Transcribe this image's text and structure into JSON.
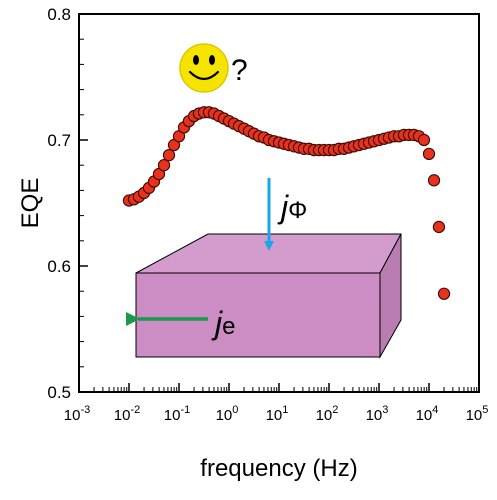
{
  "chart_data": {
    "type": "scatter",
    "title": "",
    "xlabel": "frequency (Hz)",
    "ylabel": "EQE",
    "x_scale": "log",
    "xlim": [
      0.001,
      100000
    ],
    "ylim": [
      0.5,
      0.8
    ],
    "x_tick_labels": [
      {
        "base": "10",
        "exp": "-3"
      },
      {
        "base": "10",
        "exp": "-2"
      },
      {
        "base": "10",
        "exp": "-1"
      },
      {
        "base": "10",
        "exp": "0"
      },
      {
        "base": "10",
        "exp": "1"
      },
      {
        "base": "10",
        "exp": "2"
      },
      {
        "base": "10",
        "exp": "3"
      },
      {
        "base": "10",
        "exp": "4"
      },
      {
        "base": "10",
        "exp": "5"
      }
    ],
    "y_tick_labels": [
      "0.5",
      "0.6",
      "0.7",
      "0.8"
    ],
    "y_ticks": [
      0.5,
      0.6,
      0.7,
      0.8
    ],
    "grid": false,
    "marker_color": "#e8321e",
    "marker_edge_color": "#3a0a05",
    "series": [
      {
        "points": [
          {
            "x": 0.01,
            "y": 0.652
          },
          {
            "x": 0.0126,
            "y": 0.653
          },
          {
            "x": 0.0158,
            "y": 0.655
          },
          {
            "x": 0.02,
            "y": 0.658
          },
          {
            "x": 0.0251,
            "y": 0.662
          },
          {
            "x": 0.0316,
            "y": 0.667
          },
          {
            "x": 0.0398,
            "y": 0.673
          },
          {
            "x": 0.0501,
            "y": 0.68
          },
          {
            "x": 0.0631,
            "y": 0.688
          },
          {
            "x": 0.0794,
            "y": 0.696
          },
          {
            "x": 0.1,
            "y": 0.703
          },
          {
            "x": 0.126,
            "y": 0.71
          },
          {
            "x": 0.158,
            "y": 0.715
          },
          {
            "x": 0.2,
            "y": 0.719
          },
          {
            "x": 0.251,
            "y": 0.721
          },
          {
            "x": 0.316,
            "y": 0.722
          },
          {
            "x": 0.398,
            "y": 0.722
          },
          {
            "x": 0.501,
            "y": 0.721
          },
          {
            "x": 0.631,
            "y": 0.719
          },
          {
            "x": 0.794,
            "y": 0.717
          },
          {
            "x": 1.0,
            "y": 0.715
          },
          {
            "x": 1.26,
            "y": 0.713
          },
          {
            "x": 1.58,
            "y": 0.711
          },
          {
            "x": 2.0,
            "y": 0.709
          },
          {
            "x": 2.51,
            "y": 0.707
          },
          {
            "x": 3.16,
            "y": 0.705
          },
          {
            "x": 3.98,
            "y": 0.703
          },
          {
            "x": 5.01,
            "y": 0.702
          },
          {
            "x": 6.31,
            "y": 0.7
          },
          {
            "x": 7.94,
            "y": 0.699
          },
          {
            "x": 10.0,
            "y": 0.698
          },
          {
            "x": 12.6,
            "y": 0.697
          },
          {
            "x": 15.8,
            "y": 0.696
          },
          {
            "x": 20.0,
            "y": 0.695
          },
          {
            "x": 25.1,
            "y": 0.694
          },
          {
            "x": 31.6,
            "y": 0.693
          },
          {
            "x": 39.8,
            "y": 0.693
          },
          {
            "x": 50.1,
            "y": 0.692
          },
          {
            "x": 63.1,
            "y": 0.692
          },
          {
            "x": 79.4,
            "y": 0.692
          },
          {
            "x": 100,
            "y": 0.692
          },
          {
            "x": 126,
            "y": 0.692
          },
          {
            "x": 158,
            "y": 0.693
          },
          {
            "x": 200,
            "y": 0.693
          },
          {
            "x": 251,
            "y": 0.694
          },
          {
            "x": 316,
            "y": 0.695
          },
          {
            "x": 398,
            "y": 0.696
          },
          {
            "x": 501,
            "y": 0.697
          },
          {
            "x": 631,
            "y": 0.698
          },
          {
            "x": 794,
            "y": 0.699
          },
          {
            "x": 1000,
            "y": 0.7
          },
          {
            "x": 1260,
            "y": 0.701
          },
          {
            "x": 1580,
            "y": 0.702
          },
          {
            "x": 2000,
            "y": 0.703
          },
          {
            "x": 2510,
            "y": 0.703
          },
          {
            "x": 3160,
            "y": 0.704
          },
          {
            "x": 3980,
            "y": 0.704
          },
          {
            "x": 5010,
            "y": 0.704
          },
          {
            "x": 6310,
            "y": 0.703
          },
          {
            "x": 7940,
            "y": 0.7
          },
          {
            "x": 10000,
            "y": 0.689
          },
          {
            "x": 12600,
            "y": 0.668
          },
          {
            "x": 15800,
            "y": 0.631
          },
          {
            "x": 20000,
            "y": 0.578
          }
        ]
      }
    ]
  },
  "annotations": {
    "question_mark": "?",
    "photon_current_j": "j",
    "photon_current_sub": "Φ",
    "electron_current_j": "j",
    "electron_current_sub": "e",
    "smiley_color": "#f5e400",
    "slab_color": "#cc8cc4",
    "photon_arrow_color": "#1aa6e8",
    "electron_arrow_color": "#1a9a4a"
  }
}
